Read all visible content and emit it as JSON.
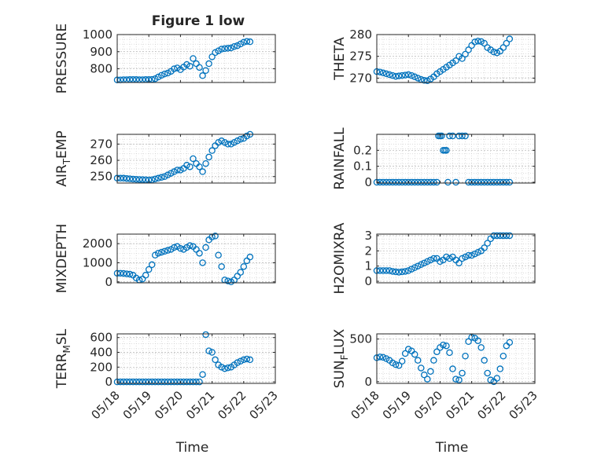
{
  "figure": {
    "title": "Figure 1 low",
    "background": "#ffffff",
    "marker_color": "#0072BD",
    "axis_color": "#262626",
    "grid_color": "#c8c8c8"
  },
  "chart_data": [
    {
      "type": "scatter",
      "id": "pressure",
      "ylabel": "PRESSURE",
      "yticks": [
        800,
        900,
        1000
      ],
      "ylim": [
        720,
        1000
      ],
      "xlim": [
        0,
        5
      ],
      "x": [
        0.0,
        0.1,
        0.2,
        0.3,
        0.4,
        0.5,
        0.6,
        0.7,
        0.8,
        0.9,
        1.0,
        1.1,
        1.2,
        1.3,
        1.4,
        1.5,
        1.6,
        1.7,
        1.8,
        1.9,
        2.0,
        2.1,
        2.2,
        2.3,
        2.4,
        2.5,
        2.6,
        2.7,
        2.8,
        2.9,
        3.0,
        3.1,
        3.2,
        3.3,
        3.4,
        3.5,
        3.6,
        3.7,
        3.8,
        3.9,
        4.0,
        4.1,
        4.2
      ],
      "y": [
        735,
        735,
        736,
        736,
        737,
        737,
        737,
        736,
        736,
        737,
        737,
        738,
        742,
        752,
        762,
        770,
        775,
        785,
        800,
        805,
        795,
        810,
        825,
        815,
        860,
        830,
        808,
        760,
        790,
        830,
        870,
        895,
        905,
        915,
        918,
        920,
        922,
        930,
        935,
        945,
        955,
        960,
        958
      ]
    },
    {
      "type": "scatter",
      "id": "air-temp",
      "ylabel": "AIR_TEMP",
      "ylabel_main": "AIR",
      "ylabel_sub": "T",
      "ylabel_tail": "EMP",
      "yticks": [
        250,
        260,
        270
      ],
      "ylim": [
        246,
        276
      ],
      "xlim": [
        0,
        5
      ],
      "x": [
        0.0,
        0.1,
        0.2,
        0.3,
        0.4,
        0.5,
        0.6,
        0.7,
        0.8,
        0.9,
        1.0,
        1.1,
        1.2,
        1.3,
        1.4,
        1.5,
        1.6,
        1.7,
        1.8,
        1.9,
        2.0,
        2.1,
        2.2,
        2.3,
        2.4,
        2.5,
        2.6,
        2.7,
        2.8,
        2.9,
        3.0,
        3.1,
        3.2,
        3.3,
        3.4,
        3.5,
        3.6,
        3.7,
        3.8,
        3.9,
        4.0,
        4.1,
        4.2
      ],
      "y": [
        249,
        249,
        249,
        248.8,
        248.6,
        248.4,
        248.3,
        248.2,
        248.1,
        248,
        247.9,
        248,
        248.5,
        249,
        249.5,
        250,
        251,
        252,
        253,
        254,
        254,
        255,
        257,
        256,
        261,
        258,
        256,
        253,
        258,
        262,
        266,
        269,
        271,
        272,
        271,
        270,
        270,
        271,
        272,
        273,
        273.5,
        275,
        276
      ]
    },
    {
      "type": "scatter",
      "id": "mixdepth",
      "ylabel": "MIXDEPTH",
      "yticks": [
        0,
        1000,
        2000
      ],
      "ylim": [
        -50,
        2500
      ],
      "xlim": [
        0,
        5
      ],
      "x": [
        0.0,
        0.1,
        0.2,
        0.3,
        0.4,
        0.5,
        0.6,
        0.7,
        0.8,
        0.9,
        1.0,
        1.1,
        1.2,
        1.3,
        1.4,
        1.5,
        1.6,
        1.7,
        1.8,
        1.9,
        2.0,
        2.1,
        2.2,
        2.3,
        2.4,
        2.5,
        2.6,
        2.7,
        2.8,
        2.9,
        3.0,
        3.1,
        3.2,
        3.3,
        3.4,
        3.5,
        3.6,
        3.7,
        3.8,
        3.9,
        4.0,
        4.1,
        4.2
      ],
      "y": [
        450,
        450,
        440,
        420,
        400,
        350,
        200,
        100,
        150,
        350,
        650,
        900,
        1400,
        1500,
        1550,
        1600,
        1650,
        1700,
        1800,
        1850,
        1750,
        1700,
        1800,
        1900,
        1850,
        1700,
        1500,
        1000,
        1800,
        2200,
        2350,
        2400,
        1400,
        800,
        100,
        50,
        0,
        100,
        300,
        500,
        800,
        1100,
        1300
      ]
    },
    {
      "type": "scatter",
      "id": "terr-msl",
      "ylabel": "TERR_MSL",
      "ylabel_main": "TERR",
      "ylabel_sub": "M",
      "ylabel_tail": "SL",
      "yticks": [
        0,
        200,
        400,
        600
      ],
      "ylim": [
        -20,
        650
      ],
      "xlim": [
        0,
        5
      ],
      "x": [
        0.0,
        0.1,
        0.2,
        0.3,
        0.4,
        0.5,
        0.6,
        0.7,
        0.8,
        0.9,
        1.0,
        1.1,
        1.2,
        1.3,
        1.4,
        1.5,
        1.6,
        1.7,
        1.8,
        1.9,
        2.0,
        2.1,
        2.2,
        2.3,
        2.4,
        2.5,
        2.6,
        2.7,
        2.8,
        2.9,
        3.0,
        3.1,
        3.2,
        3.3,
        3.4,
        3.5,
        3.6,
        3.7,
        3.8,
        3.9,
        4.0,
        4.1,
        4.2
      ],
      "y": [
        0,
        0,
        0,
        0,
        0,
        0,
        0,
        0,
        0,
        0,
        0,
        0,
        0,
        0,
        0,
        0,
        0,
        0,
        0,
        0,
        0,
        0,
        0,
        0,
        0,
        0,
        0,
        100,
        640,
        420,
        400,
        300,
        230,
        200,
        180,
        190,
        200,
        230,
        260,
        280,
        300,
        310,
        300
      ]
    },
    {
      "type": "scatter",
      "id": "theta",
      "ylabel": "THETA",
      "yticks": [
        270,
        275,
        280
      ],
      "ylim": [
        269,
        280
      ],
      "xlim": [
        0,
        5
      ],
      "x": [
        0.0,
        0.1,
        0.2,
        0.3,
        0.4,
        0.5,
        0.6,
        0.7,
        0.8,
        0.9,
        1.0,
        1.1,
        1.2,
        1.3,
        1.4,
        1.5,
        1.6,
        1.7,
        1.8,
        1.9,
        2.0,
        2.1,
        2.2,
        2.3,
        2.4,
        2.5,
        2.6,
        2.7,
        2.8,
        2.9,
        3.0,
        3.1,
        3.2,
        3.3,
        3.4,
        3.5,
        3.6,
        3.7,
        3.8,
        3.9,
        4.0,
        4.1,
        4.2
      ],
      "y": [
        271.5,
        271.4,
        271.2,
        271,
        270.8,
        270.6,
        270.4,
        270.5,
        270.6,
        270.7,
        270.8,
        270.6,
        270.3,
        270,
        269.7,
        269.5,
        269.4,
        269.8,
        270.3,
        271,
        271.5,
        272,
        272.5,
        273,
        273.5,
        274,
        275,
        274.5,
        275.5,
        276.5,
        277.5,
        278.3,
        278.5,
        278.4,
        278,
        277,
        276.5,
        276,
        275.8,
        276.2,
        277,
        278,
        279
      ]
    },
    {
      "type": "scatter",
      "id": "rainfall",
      "ylabel": "RAINFALL",
      "yticks": [
        0,
        0.1,
        0.2
      ],
      "ylim": [
        -0.005,
        0.3
      ],
      "xlim": [
        0,
        5
      ],
      "x": [
        0.0,
        0.1,
        0.2,
        0.3,
        0.4,
        0.5,
        0.6,
        0.7,
        0.8,
        0.9,
        1.0,
        1.1,
        1.2,
        1.3,
        1.4,
        1.5,
        1.6,
        1.7,
        1.8,
        1.9,
        1.95,
        2.0,
        2.05,
        2.1,
        2.15,
        2.2,
        2.25,
        2.3,
        2.4,
        2.5,
        2.6,
        2.7,
        2.8,
        2.9,
        3.0,
        3.1,
        3.2,
        3.3,
        3.4,
        3.5,
        3.6,
        3.7,
        3.8,
        3.9,
        4.0,
        4.1,
        4.2
      ],
      "y": [
        0,
        0,
        0,
        0,
        0,
        0,
        0,
        0,
        0,
        0,
        0,
        0,
        0,
        0,
        0,
        0,
        0,
        0,
        0,
        0,
        0.29,
        0.29,
        0.29,
        0.2,
        0.2,
        0.2,
        0,
        0.29,
        0.29,
        0,
        0.29,
        0.29,
        0.29,
        0,
        0,
        0,
        0,
        0,
        0,
        0,
        0,
        0,
        0,
        0,
        0,
        0,
        0
      ]
    },
    {
      "type": "scatter",
      "id": "h2omixra",
      "ylabel": "H2OMIXRA",
      "yticks": [
        0,
        1,
        2,
        3
      ],
      "ylim": [
        -0.1,
        3.1
      ],
      "xlim": [
        0,
        5
      ],
      "x": [
        0.0,
        0.1,
        0.2,
        0.3,
        0.4,
        0.5,
        0.6,
        0.7,
        0.8,
        0.9,
        1.0,
        1.1,
        1.2,
        1.3,
        1.4,
        1.5,
        1.6,
        1.7,
        1.8,
        1.9,
        2.0,
        2.1,
        2.2,
        2.3,
        2.4,
        2.5,
        2.6,
        2.7,
        2.8,
        2.9,
        3.0,
        3.1,
        3.2,
        3.3,
        3.4,
        3.5,
        3.6,
        3.7,
        3.8,
        3.9,
        4.0,
        4.1,
        4.2
      ],
      "y": [
        0.7,
        0.7,
        0.7,
        0.7,
        0.7,
        0.65,
        0.62,
        0.6,
        0.62,
        0.65,
        0.7,
        0.8,
        0.9,
        1.0,
        1.1,
        1.2,
        1.3,
        1.4,
        1.5,
        1.5,
        1.3,
        1.4,
        1.6,
        1.5,
        1.6,
        1.4,
        1.2,
        1.5,
        1.6,
        1.7,
        1.7,
        1.8,
        1.9,
        2.0,
        2.2,
        2.5,
        2.8,
        3.0,
        3.0,
        3.0,
        3.0,
        3.0,
        3.0
      ]
    },
    {
      "type": "scatter",
      "id": "sun-flux",
      "ylabel": "SUN_FLUX",
      "ylabel_main": "SUN",
      "ylabel_sub": "F",
      "ylabel_tail": "LUX",
      "yticks": [
        0,
        500
      ],
      "ylim": [
        -20,
        560
      ],
      "xlim": [
        0,
        5
      ],
      "x": [
        0.0,
        0.1,
        0.2,
        0.3,
        0.4,
        0.5,
        0.6,
        0.7,
        0.8,
        0.9,
        1.0,
        1.1,
        1.2,
        1.3,
        1.4,
        1.5,
        1.6,
        1.7,
        1.8,
        1.9,
        2.0,
        2.1,
        2.2,
        2.3,
        2.4,
        2.5,
        2.6,
        2.7,
        2.8,
        2.9,
        3.0,
        3.1,
        3.2,
        3.3,
        3.4,
        3.5,
        3.6,
        3.7,
        3.8,
        3.9,
        4.0,
        4.1,
        4.2
      ],
      "y": [
        280,
        290,
        285,
        270,
        250,
        220,
        200,
        190,
        240,
        330,
        380,
        360,
        320,
        250,
        160,
        80,
        30,
        120,
        250,
        350,
        400,
        430,
        420,
        340,
        150,
        30,
        20,
        100,
        300,
        470,
        520,
        510,
        480,
        400,
        250,
        100,
        20,
        0,
        40,
        150,
        300,
        420,
        460
      ]
    }
  ],
  "x_axis": {
    "tick_labels": [
      "05/18",
      "05/19",
      "05/20",
      "05/21",
      "05/22",
      "05/23"
    ],
    "label": "Time"
  }
}
